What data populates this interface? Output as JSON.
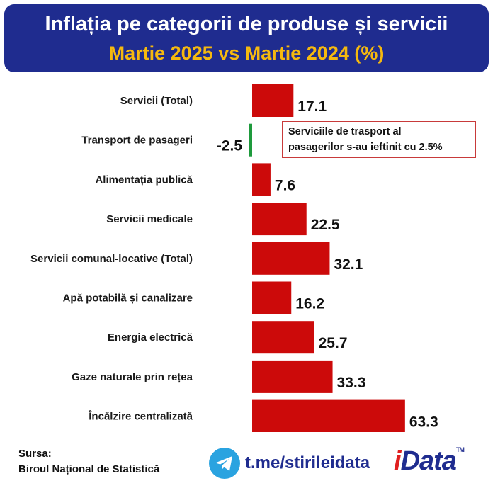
{
  "header": {
    "title": "Inflația pe categorii de produse și servicii",
    "subtitle": "Martie 2025 vs Martie 2024 (%)"
  },
  "chart_data": {
    "type": "bar",
    "orientation": "horizontal",
    "categories": [
      "Servicii (Total)",
      "Transport de pasageri",
      "Alimentația publică",
      "Servicii medicale",
      "Servicii comunal-locative (Total)",
      "Apă potabilă și canalizare",
      "Energia electrică",
      "Gaze naturale prin rețea",
      "Încălzire centralizată"
    ],
    "values": [
      17.1,
      -2.5,
      7.6,
      22.5,
      32.1,
      16.2,
      25.7,
      33.3,
      63.3
    ],
    "value_labels": [
      "17.1",
      "-2.5",
      "7.6",
      "22.5",
      "32.1",
      "16.2",
      "25.7",
      "33.3",
      "63.3"
    ],
    "colors": {
      "positive": "#cc0a0a",
      "negative": "#1e9a3c"
    },
    "grid": false,
    "legend": "none",
    "xlabel": "",
    "ylabel": ""
  },
  "annotation": {
    "line1": "Serviciile de trasport al",
    "line2": "pasagerilor s-au ieftinit cu 2.5%"
  },
  "footer": {
    "source_label": "Sursa:",
    "source_value": "Biroul Național de Statistică",
    "telegram_link": "t.me/stirileidata",
    "brand_i": "i",
    "brand_rest": "Data",
    "brand_tm": "TM"
  },
  "icons": {
    "telegram": "telegram-icon"
  }
}
